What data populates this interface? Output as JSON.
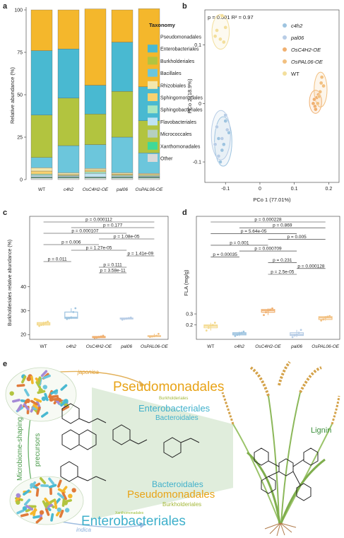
{
  "chart_data": [
    {
      "panel": "a",
      "type": "bar",
      "stacked": true,
      "categories": [
        "WT",
        "c4h2",
        "OsC4H2-OE",
        "pal06",
        "OsPAL06-OE"
      ],
      "ylabel": "Relative abundance (%)",
      "ylim": [
        0,
        100
      ],
      "yticks": [
        "0",
        "25",
        "50",
        "75",
        "100"
      ],
      "legend_title": "Taxonomy",
      "legend_position": "right",
      "series": [
        {
          "name": "Other",
          "color": "#d9d9d9",
          "values": [
            1,
            1,
            1,
            1,
            1
          ]
        },
        {
          "name": "Xanthomonadales",
          "color": "#3fd998",
          "values": [
            0.3,
            0.3,
            0.3,
            0.3,
            0.3
          ]
        },
        {
          "name": "Micrococcales",
          "color": "#b5cfc0",
          "values": [
            0.3,
            0.3,
            0.3,
            0.3,
            0.3
          ]
        },
        {
          "name": "Flavobacteriales",
          "color": "#bfe3f2",
          "values": [
            0.9,
            0.5,
            2,
            0.5,
            0.4
          ]
        },
        {
          "name": "Sphingobacteriales",
          "color": "#a8e6c0",
          "values": [
            0.8,
            0.4,
            1,
            0.5,
            0.5
          ]
        },
        {
          "name": "Sphingomonadales",
          "color": "#f8d270",
          "values": [
            1.7,
            0.5,
            1,
            0.7,
            0.5
          ]
        },
        {
          "name": "Rhizobiales",
          "color": "#f3e7ad",
          "values": [
            2,
            1,
            1,
            0.7,
            0.7
          ]
        },
        {
          "name": "Bacillales",
          "color": "#6cc6dc",
          "values": [
            6,
            16,
            14,
            21,
            12
          ]
        },
        {
          "name": "Burkholderiales",
          "color": "#b2c43f",
          "values": [
            25,
            28,
            18,
            27,
            19
          ]
        },
        {
          "name": "Enterobacteriales",
          "color": "#49b9d1",
          "values": [
            38,
            29,
            17,
            29,
            20
          ]
        },
        {
          "name": "Pseudomonadales",
          "color": "#f4b72c",
          "values": [
            24,
            23,
            45,
            19,
            46
          ]
        }
      ]
    },
    {
      "panel": "b",
      "type": "scatter",
      "annotation": "p = 0.001 R² = 0.97",
      "xlabel": "PCo 1 (77.01%)",
      "ylabel": "PCo 2 (18.9%)",
      "xticks": [
        -0.1,
        0,
        0.1,
        0.2
      ],
      "yticks": [
        -0.1,
        0,
        0.1
      ],
      "xlim": [
        -0.16,
        0.23
      ],
      "ylim": [
        -0.135,
        0.16
      ],
      "legend_position": "top-right",
      "series": [
        {
          "name": "c4h2",
          "color": "#9ec4e0",
          "points": [
            [
              -0.1,
              -0.03
            ],
            [
              -0.09,
              -0.05
            ],
            [
              -0.12,
              -0.06
            ],
            [
              -0.11,
              -0.08
            ],
            [
              -0.115,
              -0.1
            ],
            [
              -0.105,
              -0.07
            ]
          ]
        },
        {
          "name": "pal06",
          "color": "#b8cde6",
          "points": [
            [
              -0.125,
              -0.04
            ],
            [
              -0.12,
              -0.09
            ],
            [
              -0.11,
              -0.06
            ],
            [
              -0.095,
              -0.045
            ],
            [
              -0.13,
              -0.07
            ],
            [
              -0.1,
              -0.02
            ]
          ]
        },
        {
          "name": "OsC4H2-OE",
          "color": "#f0b070",
          "points": [
            [
              0.155,
              0.0
            ],
            [
              0.165,
              0.01
            ],
            [
              0.16,
              -0.005
            ],
            [
              0.17,
              0.015
            ],
            [
              0.158,
              0.007
            ],
            [
              0.162,
              -0.01
            ]
          ]
        },
        {
          "name": "OsPAL06-OE",
          "color": "#f2c080",
          "points": [
            [
              0.175,
              0.02
            ],
            [
              0.18,
              0.045
            ],
            [
              0.185,
              0.03
            ],
            [
              0.178,
              0.035
            ],
            [
              0.172,
              0.012
            ],
            [
              0.168,
              0.0
            ]
          ]
        },
        {
          "name": "WT",
          "color": "#f3df9c",
          "points": [
            [
              -0.11,
              0.15
            ],
            [
              -0.13,
              0.115
            ],
            [
              -0.115,
              0.11
            ],
            [
              -0.1,
              0.13
            ],
            [
              -0.125,
              0.125
            ],
            [
              -0.105,
              0.105
            ]
          ]
        }
      ]
    },
    {
      "panel": "c",
      "type": "box",
      "categories": [
        "WT",
        "c4h2",
        "OsC4H2-OE",
        "pal06",
        "OsPAL06-OE"
      ],
      "ylabel": "Burkholderiales relative abundance (%)",
      "yticks": [
        20,
        30,
        40
      ],
      "ylim": [
        18,
        44
      ],
      "colors": [
        "#f3d98c",
        "#9ec4e0",
        "#f0b070",
        "#b8cde6",
        "#f2c080"
      ],
      "boxes": [
        {
          "min": 23.6,
          "q1": 24.0,
          "median": 24.5,
          "q3": 25.0,
          "max": 25.4
        },
        {
          "min": 26.5,
          "q1": 26.8,
          "median": 27.2,
          "q3": 29.4,
          "max": 31.0
        },
        {
          "min": 18.6,
          "q1": 18.7,
          "median": 18.9,
          "q3": 19.2,
          "max": 19.5
        },
        {
          "min": 26.2,
          "q1": 26.5,
          "median": 26.7,
          "q3": 26.9,
          "max": 27.1
        },
        {
          "min": 19.0,
          "q1": 19.2,
          "median": 19.3,
          "q3": 19.5,
          "max": 20.3
        }
      ],
      "comparisons": [
        {
          "from": 0,
          "to": 4,
          "label": "p = 0.000112"
        },
        {
          "from": 1,
          "to": 4,
          "label": "p = 0.177"
        },
        {
          "from": 0,
          "to": 3,
          "label": "p = 0.000107"
        },
        {
          "from": 2,
          "to": 4,
          "label": "p = 1.08e-05"
        },
        {
          "from": 0,
          "to": 2,
          "label": "p = 0.006"
        },
        {
          "from": 1,
          "to": 3,
          "label": "p = 1.27e-05"
        },
        {
          "from": 3,
          "to": 4,
          "label": "p = 1.41e-09"
        },
        {
          "from": 0,
          "to": 1,
          "label": "p = 0.011"
        },
        {
          "from": 2,
          "to": 3,
          "label": "p = 0.111"
        },
        {
          "from": 2,
          "to": 3,
          "label": "p = 3.58e-11"
        }
      ]
    },
    {
      "panel": "d",
      "type": "box",
      "categories": [
        "WT",
        "c4h2",
        "OsC4H2-OE",
        "pal06",
        "OsPAL06-OE"
      ],
      "ylabel": "FLA (mg/g)",
      "yticks": [
        0.2,
        0.3
      ],
      "ylim": [
        0.07,
        0.62
      ],
      "colors": [
        "#f3d98c",
        "#9ec4e0",
        "#f0b070",
        "#b8cde6",
        "#f2c080"
      ],
      "boxes": [
        {
          "min": 0.15,
          "q1": 0.175,
          "median": 0.19,
          "q3": 0.2,
          "max": 0.22
        },
        {
          "min": 0.1,
          "q1": 0.11,
          "median": 0.12,
          "q3": 0.13,
          "max": 0.14
        },
        {
          "min": 0.29,
          "q1": 0.315,
          "median": 0.33,
          "q3": 0.34,
          "max": 0.35
        },
        {
          "min": 0.09,
          "q1": 0.105,
          "median": 0.115,
          "q3": 0.13,
          "max": 0.155
        },
        {
          "min": 0.24,
          "q1": 0.25,
          "median": 0.265,
          "q3": 0.275,
          "max": 0.28
        }
      ],
      "comparisons": [
        {
          "from": 0,
          "to": 4,
          "label": "p = 0.000228"
        },
        {
          "from": 1,
          "to": 4,
          "label": "p = 0.869"
        },
        {
          "from": 0,
          "to": 3,
          "label": "p = 5.64e-05"
        },
        {
          "from": 2,
          "to": 4,
          "label": "p = 0.005"
        },
        {
          "from": 0,
          "to": 2,
          "label": "p = 0.001"
        },
        {
          "from": 1,
          "to": 3,
          "label": "p = 0.000709"
        },
        {
          "from": 0,
          "to": 1,
          "label": "p = 0.00035"
        },
        {
          "from": 2,
          "to": 3,
          "label": "p = 0.231"
        },
        {
          "from": 3,
          "to": 4,
          "label": "p = 0.000128"
        },
        {
          "from": 2,
          "to": 3,
          "label": "p = 2.5e-05"
        }
      ]
    }
  ],
  "panel_labels": {
    "a": "a",
    "b": "b",
    "c": "c",
    "d": "d",
    "e": "e"
  },
  "illustration": {
    "japonica": "japonica",
    "indica": "indica",
    "side_left": "Microbiome-shaping",
    "side_right": "precursors",
    "lignin": "Lignin",
    "top_words": [
      {
        "text": "Pseudomonadales",
        "color": "#e8a317",
        "size": 19
      },
      {
        "text": "Burkholderiales",
        "color": "#a4b83a",
        "size": 6
      },
      {
        "text": "Enterobacteriales",
        "color": "#3fb0cb",
        "size": 13
      },
      {
        "text": "Bacteroidales",
        "color": "#3fb0cb",
        "size": 10
      }
    ],
    "bottom_words": [
      {
        "text": "Bacteroidales",
        "color": "#3fb0cb",
        "size": 12
      },
      {
        "text": "Pseudomonadales",
        "color": "#e8a317",
        "size": 15
      },
      {
        "text": "Burkholderiales",
        "color": "#a4b83a",
        "size": 8
      },
      {
        "text": "Xanthomonadales",
        "color": "#9bbf3a",
        "size": 5
      },
      {
        "text": "Enterobacteriales",
        "color": "#3fb0cb",
        "size": 19
      }
    ]
  }
}
